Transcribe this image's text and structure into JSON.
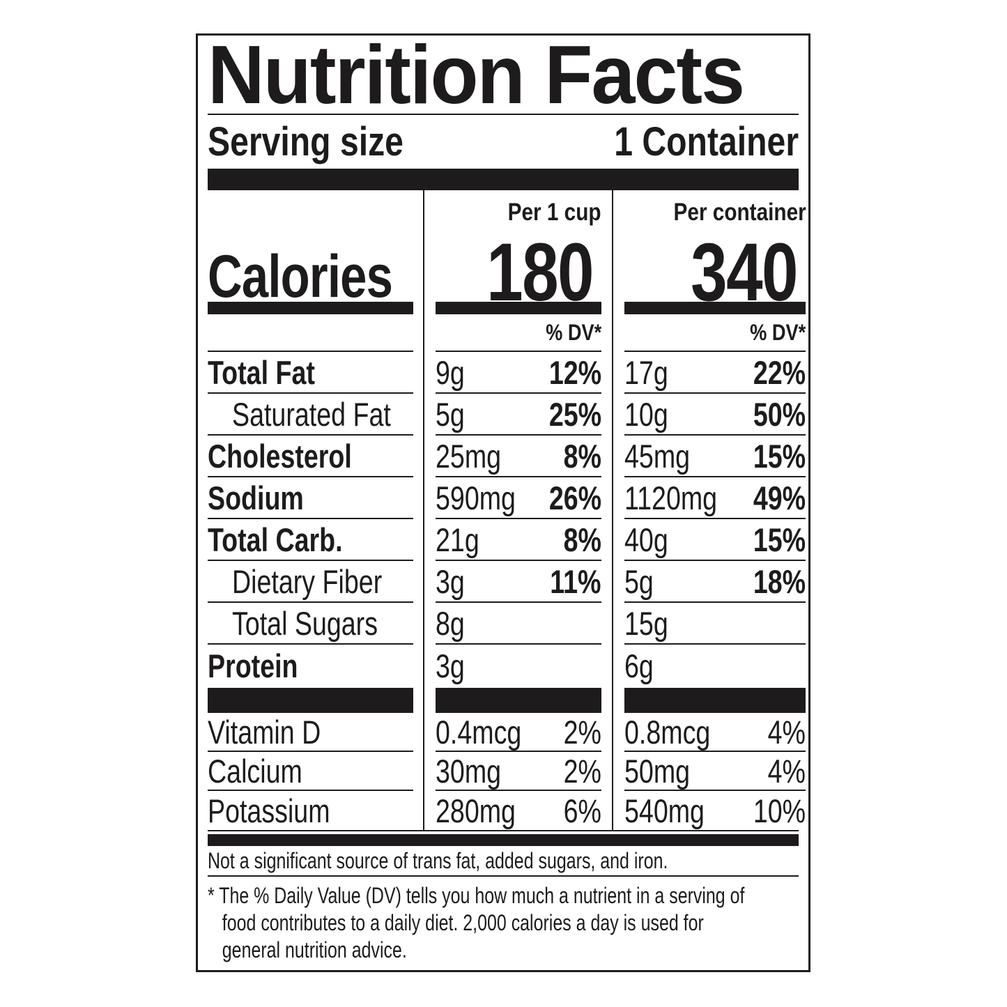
{
  "label": {
    "title": "Nutrition Facts",
    "serving": {
      "label": "Serving size",
      "value": "1 Container"
    },
    "calories_label": "Calories",
    "columns": {
      "cup": {
        "header": "Per 1 cup",
        "calories": "180",
        "dv_header": "% DV*"
      },
      "container": {
        "header": "Per container",
        "calories": "340",
        "dv_header": "% DV*"
      }
    },
    "nutrients": [
      {
        "name": "Total Fat",
        "cup": {
          "amount": "9g",
          "dv": "12%"
        },
        "container": {
          "amount": "17g",
          "dv": "22%"
        }
      },
      {
        "name": "Saturated Fat",
        "cup": {
          "amount": "5g",
          "dv": "25%"
        },
        "container": {
          "amount": "10g",
          "dv": "50%"
        }
      },
      {
        "name": "Cholesterol",
        "cup": {
          "amount": "25mg",
          "dv": "8%"
        },
        "container": {
          "amount": "45mg",
          "dv": "15%"
        }
      },
      {
        "name": "Sodium",
        "cup": {
          "amount": "590mg",
          "dv": "26%"
        },
        "container": {
          "amount": "1120mg",
          "dv": "49%"
        }
      },
      {
        "name": "Total Carb.",
        "cup": {
          "amount": "21g",
          "dv": "8%"
        },
        "container": {
          "amount": "40g",
          "dv": "15%"
        }
      },
      {
        "name": "Dietary Fiber",
        "cup": {
          "amount": "3g",
          "dv": "11%"
        },
        "container": {
          "amount": "5g",
          "dv": "18%"
        }
      },
      {
        "name": "Total Sugars",
        "cup": {
          "amount": "8g",
          "dv": ""
        },
        "container": {
          "amount": "15g",
          "dv": ""
        }
      },
      {
        "name": "Protein",
        "cup": {
          "amount": "3g",
          "dv": ""
        },
        "container": {
          "amount": "6g",
          "dv": ""
        }
      }
    ],
    "vitamins": [
      {
        "name": "Vitamin D",
        "cup": {
          "amount": "0.4mcg",
          "dv": "2%"
        },
        "container": {
          "amount": "0.8mcg",
          "dv": "4%"
        }
      },
      {
        "name": "Calcium",
        "cup": {
          "amount": "30mg",
          "dv": "2%"
        },
        "container": {
          "amount": "50mg",
          "dv": "4%"
        }
      },
      {
        "name": "Potassium",
        "cup": {
          "amount": "280mg",
          "dv": "6%"
        },
        "container": {
          "amount": "540mg",
          "dv": "10%"
        }
      }
    ],
    "note": "Not a significant source of trans fat, added sugars, and iron.",
    "footnote": "* The % Daily Value (DV) tells you how much a nutrient in a serving of\n   food contributes to a daily diet. 2,000 calories a day is used for\n   general nutrition advice."
  }
}
